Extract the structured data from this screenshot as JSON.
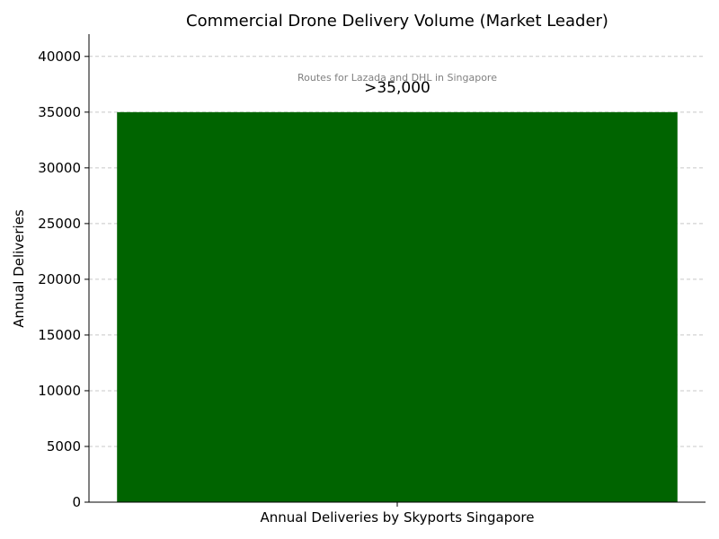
{
  "chart_data": {
    "type": "bar",
    "title": "Commercial Drone Delivery Volume (Market Leader)",
    "xlabel": "",
    "ylabel": "Annual Deliveries",
    "categories": [
      "Annual Deliveries by Skyports Singapore"
    ],
    "values": [
      35000
    ],
    "data_labels": [
      ">35,000"
    ],
    "annotation": "Routes for Lazada and DHL in Singapore",
    "ylim": [
      0,
      42000
    ],
    "yticks": [
      0,
      5000,
      10000,
      15000,
      20000,
      25000,
      30000,
      35000,
      40000
    ],
    "grid": true,
    "bar_color": "#006400"
  }
}
